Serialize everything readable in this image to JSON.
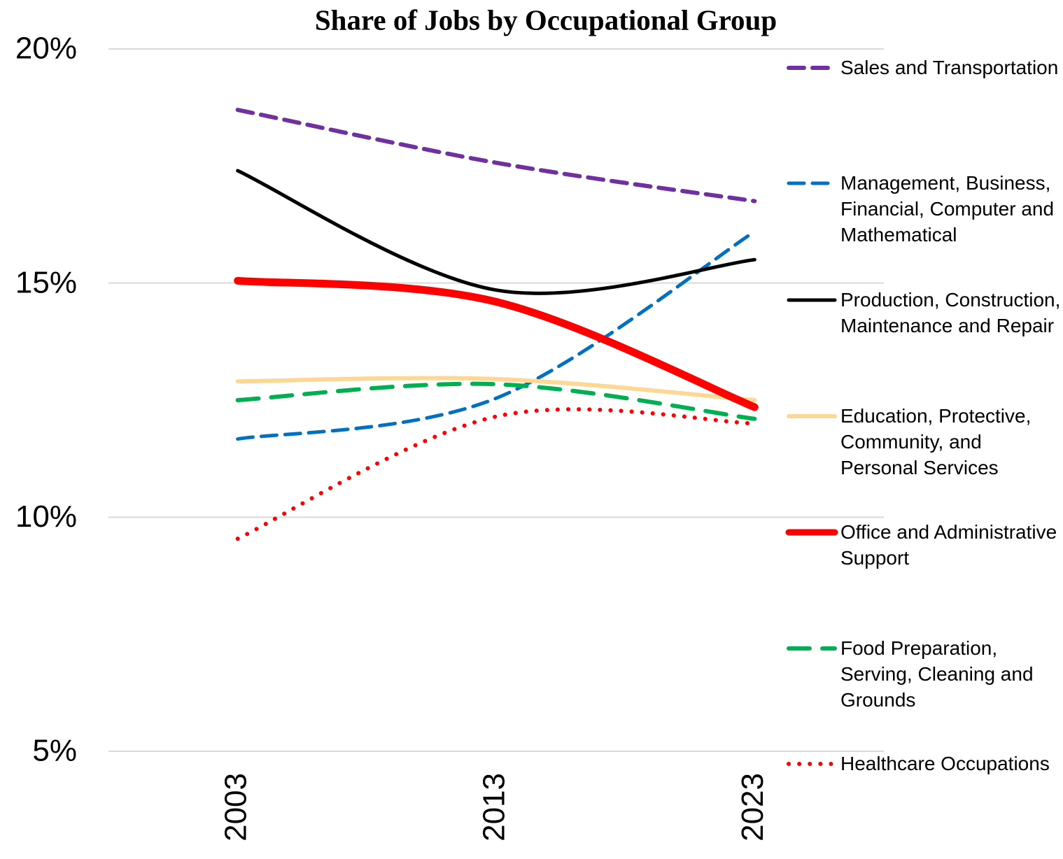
{
  "chart_data": {
    "type": "line",
    "title": "Share of Jobs by Occupational Group",
    "categories": [
      "2003",
      "2013",
      "2023"
    ],
    "ylim": [
      5,
      20
    ],
    "yticks": [
      {
        "value": 5,
        "label": "5%"
      },
      {
        "value": 10,
        "label": "10%"
      },
      {
        "value": 15,
        "label": "15%"
      },
      {
        "value": 20,
        "label": "20%"
      }
    ],
    "grid": true,
    "legend": "right",
    "series": [
      {
        "name": "Sales and Transportation",
        "color": "#7030a0",
        "line_style": "dashed",
        "values": [
          18.7,
          17.57,
          16.75
        ]
      },
      {
        "name": "Management, Business, Financial, Computer and Mathematical",
        "color": "#0070c0",
        "line_style": "dashed",
        "values": [
          11.67,
          12.54,
          16.1
        ]
      },
      {
        "name": "Production, Construction, Maintenance and Repair",
        "color": "#000000",
        "line_style": "solid",
        "values": [
          17.4,
          14.85,
          15.5
        ]
      },
      {
        "name": "Education, Protective, Community, and Personal Services",
        "color": "#fdd794",
        "line_style": "solid",
        "values": [
          12.9,
          12.95,
          12.5
        ]
      },
      {
        "name": "Office and Administrative Support",
        "color": "#ff0000",
        "line_style": "solid",
        "values": [
          15.05,
          14.6,
          12.35
        ]
      },
      {
        "name": "Food Preparation, Serving, Cleaning and Grounds",
        "color": "#00b050",
        "line_style": "dashed",
        "values": [
          12.5,
          12.84,
          12.1
        ]
      },
      {
        "name": "Healthcare Occupations",
        "color": "#ff0000",
        "line_style": "dotted",
        "values": [
          9.54,
          12.15,
          12.0
        ]
      }
    ]
  }
}
